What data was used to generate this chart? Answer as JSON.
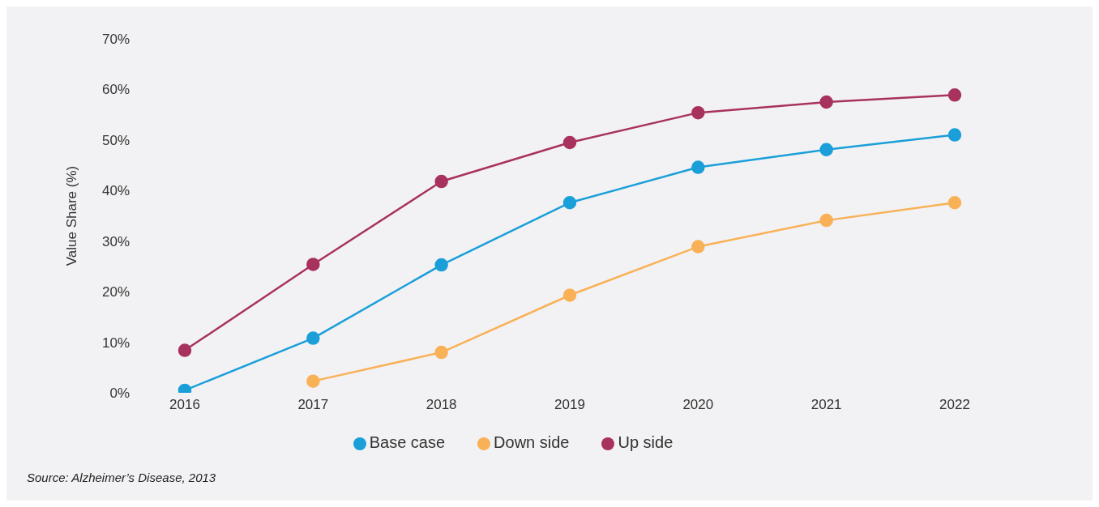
{
  "chart_data": {
    "type": "line",
    "ylabel": "Value Share (%)",
    "categories": [
      "2016",
      "2017",
      "2018",
      "2019",
      "2020",
      "2021",
      "2022"
    ],
    "series": [
      {
        "name": "Base case",
        "color": "#1a9fd9",
        "values": [
          0.5,
          10.8,
          25.3,
          37.6,
          44.6,
          48.1,
          51.0
        ]
      },
      {
        "name": "Down side",
        "color": "#f9b157",
        "values": [
          null,
          2.3,
          8.0,
          19.3,
          28.9,
          34.1,
          37.6
        ]
      },
      {
        "name": "Up side",
        "color": "#a8325e",
        "values": [
          8.4,
          25.4,
          41.8,
          49.5,
          55.4,
          57.5,
          58.9
        ]
      }
    ],
    "ylim": [
      0,
      70
    ],
    "yticks": [
      {
        "value": 0,
        "label": "0%"
      },
      {
        "value": 10,
        "label": "10%"
      },
      {
        "value": 20,
        "label": "20%"
      },
      {
        "value": 30,
        "label": "30%"
      },
      {
        "value": 40,
        "label": "40%"
      },
      {
        "value": 50,
        "label": "50%"
      },
      {
        "value": 60,
        "label": "60%"
      },
      {
        "value": 70,
        "label": "70%"
      }
    ],
    "grid": false,
    "legend": "bottom",
    "marker": "circle",
    "line_style": "solid",
    "annotations": [
      "Source: Alzheimer’s Disease, 2013"
    ]
  }
}
